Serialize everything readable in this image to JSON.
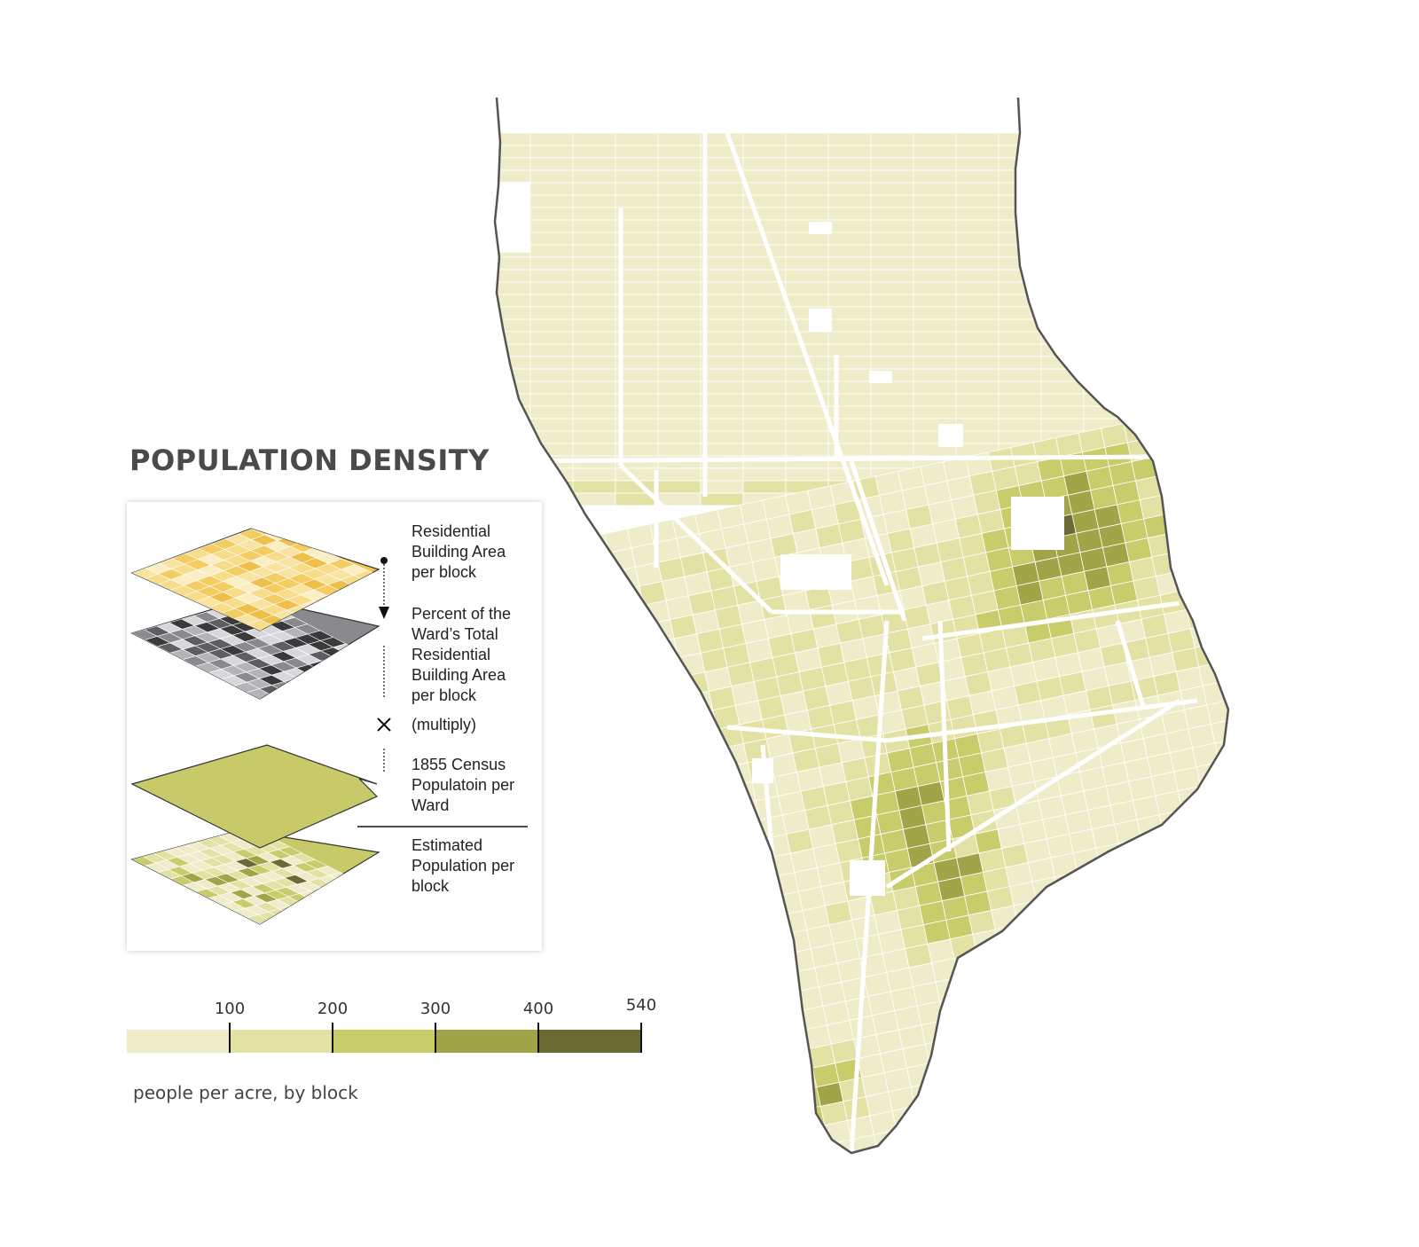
{
  "title": "POPULATION DENSITY",
  "process": {
    "steps": [
      "Residential Building Area per block",
      "Percent of the Ward’s Total Residential Building Area per block",
      "(multiply)",
      "1855 Census Populatoin per Ward",
      "Estimated Population per block"
    ]
  },
  "legend": {
    "tick_labels": [
      "100",
      "200",
      "300",
      "400",
      "540"
    ],
    "units": "people per acre, by block",
    "colors": [
      "#efecc9",
      "#e2e2a4",
      "#c9cc6b",
      "#a2a448",
      "#6a6b34"
    ]
  },
  "colors": {
    "outline": "#555555",
    "street": "#ffffff",
    "top_layer": "#f2c654",
    "gray_layer": "#8a8a8e",
    "ward_layer": "#c8ca6a"
  }
}
